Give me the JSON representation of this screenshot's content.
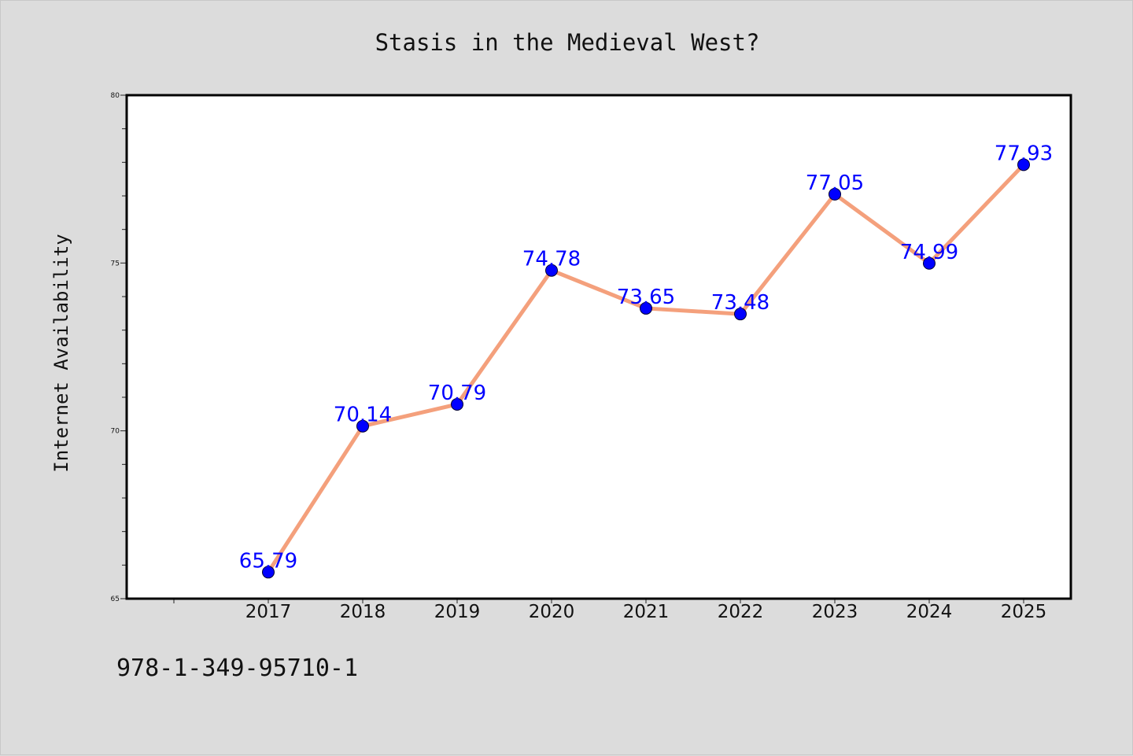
{
  "footer_code": "978-1-349-95710-1",
  "colors": {
    "background": "#dcdcdc",
    "plot_background": "#ffffff",
    "line": "#f4a07c",
    "marker": "#0000ff",
    "data_label": "#0000ff",
    "text": "#111111"
  },
  "chart_data": {
    "type": "line",
    "title": "Stasis in the Medieval West?",
    "xlabel": "",
    "ylabel": "Internet Availability",
    "categories": [
      "2017",
      "2018",
      "2019",
      "2020",
      "2021",
      "2022",
      "2023",
      "2024",
      "2025"
    ],
    "values": [
      65.79,
      70.14,
      70.79,
      74.78,
      73.65,
      73.48,
      77.05,
      74.99,
      77.93
    ],
    "data_labels": [
      "65.79",
      "70.14",
      "70.79",
      "74.78",
      "73.65",
      "73.48",
      "77.05",
      "74.99",
      "77.93"
    ],
    "ylim": [
      65,
      80
    ],
    "yticks": [
      65,
      70,
      75,
      80
    ],
    "ytick_labels": [
      "65",
      "70",
      "75",
      "80"
    ],
    "grid": false,
    "legend": "none"
  }
}
